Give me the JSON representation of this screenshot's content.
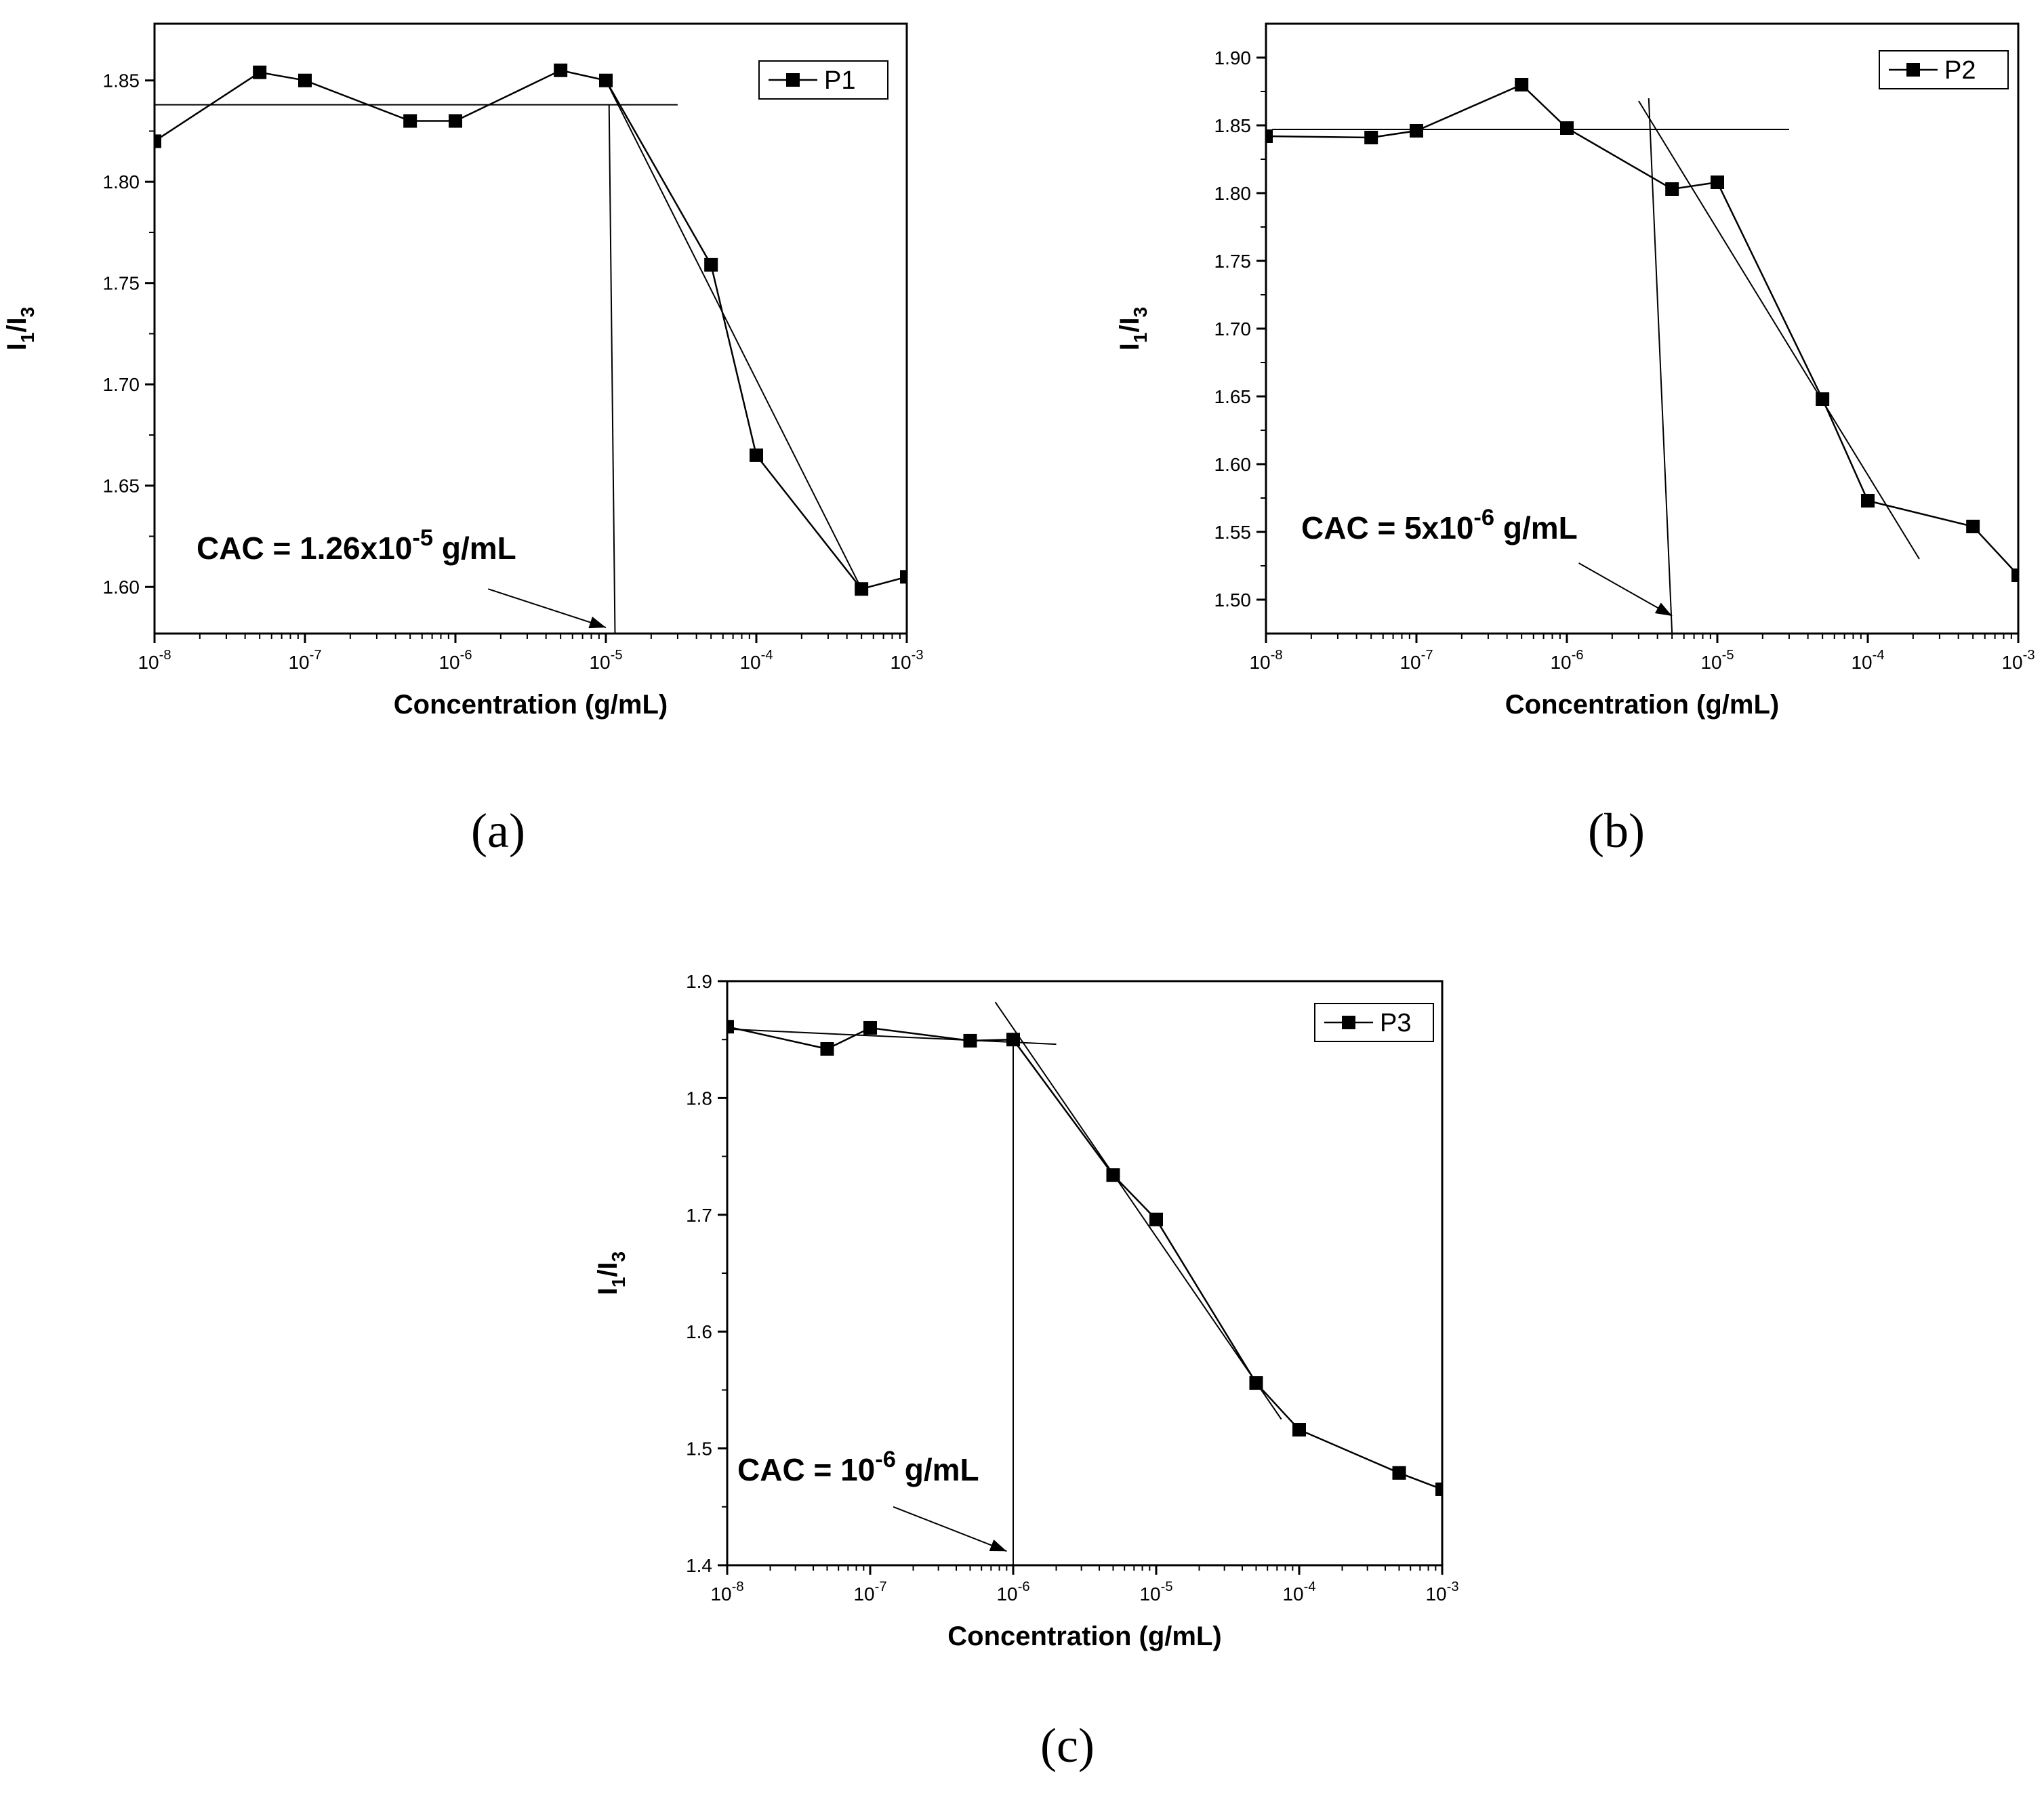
{
  "colors": {
    "ink": "#000000",
    "background": "#ffffff"
  },
  "chart_data": [
    {
      "panel": "a",
      "panel_label": "(a)",
      "type": "line",
      "series": [
        {
          "name": "P1",
          "marker": "filled-square",
          "x": [
            1e-08,
            5e-08,
            1e-07,
            5e-07,
            1e-06,
            5e-06,
            1e-05,
            5e-05,
            0.0001,
            0.0005,
            0.001
          ],
          "y": [
            1.82,
            1.854,
            1.85,
            1.83,
            1.83,
            1.855,
            1.85,
            1.759,
            1.665,
            1.599,
            1.605
          ]
        }
      ],
      "fit_lines": [
        {
          "x": [
            1e-08,
            3e-05
          ],
          "y": [
            1.838,
            1.838
          ]
        },
        {
          "x": [
            1.05e-05,
            1.15e-05
          ],
          "y": [
            1.838,
            1.577
          ]
        },
        {
          "x": [
            1e-05,
            0.0005
          ],
          "y": [
            1.85,
            1.599
          ]
        }
      ],
      "xlabel": "Concentration (g/mL)",
      "ylabel_main": "I",
      "ylabel_sub1": "1",
      "ylabel_sep": "/",
      "ylabel_sub2": "3",
      "xscale": "log",
      "xlim": [
        1e-08,
        0.001
      ],
      "ylim": [
        1.577,
        1.878
      ],
      "x_ticks": [
        {
          "base": "10",
          "exp": "-8"
        },
        {
          "base": "10",
          "exp": "-7"
        },
        {
          "base": "10",
          "exp": "-6"
        },
        {
          "base": "10",
          "exp": "-5"
        },
        {
          "base": "10",
          "exp": "-4"
        },
        {
          "base": "10",
          "exp": "-3"
        }
      ],
      "y_ticks": [
        "1.60",
        "1.65",
        "1.70",
        "1.75",
        "1.80",
        "1.85"
      ],
      "legend_position": "top-right",
      "annotation": {
        "prefix": "CAC = 1.26x10",
        "exp": "-5",
        "suffix": " g/mL",
        "arrow_from": [
          1.65e-06,
          1.599
        ],
        "arrow_to": [
          1e-05,
          1.58
        ]
      }
    },
    {
      "panel": "b",
      "panel_label": "(b)",
      "type": "line",
      "series": [
        {
          "name": "P2",
          "marker": "filled-square",
          "x": [
            1e-08,
            5e-08,
            1e-07,
            5e-07,
            1e-06,
            5e-06,
            1e-05,
            5e-05,
            0.0001,
            0.0005,
            0.001
          ],
          "y": [
            1.842,
            1.841,
            1.846,
            1.88,
            1.848,
            1.803,
            1.808,
            1.648,
            1.573,
            1.554,
            1.518
          ]
        }
      ],
      "fit_lines": [
        {
          "x": [
            1.1e-08,
            3e-05
          ],
          "y": [
            1.847,
            1.847
          ]
        },
        {
          "x": [
            3.5e-06,
            5e-06
          ],
          "y": [
            1.87,
            1.475
          ]
        },
        {
          "x": [
            3e-06,
            0.00022
          ],
          "y": [
            1.868,
            1.53
          ]
        }
      ],
      "xlabel": "Concentration (g/mL)",
      "ylabel_main": "I",
      "ylabel_sub1": "1",
      "ylabel_sep": "/",
      "ylabel_sub2": "3",
      "xscale": "log",
      "xlim": [
        1e-08,
        0.001
      ],
      "ylim": [
        1.475,
        1.925
      ],
      "x_ticks": [
        {
          "base": "10",
          "exp": "-8"
        },
        {
          "base": "10",
          "exp": "-7"
        },
        {
          "base": "10",
          "exp": "-6"
        },
        {
          "base": "10",
          "exp": "-5"
        },
        {
          "base": "10",
          "exp": "-4"
        },
        {
          "base": "10",
          "exp": "-3"
        }
      ],
      "y_ticks": [
        "1.50",
        "1.55",
        "1.60",
        "1.65",
        "1.70",
        "1.75",
        "1.80",
        "1.85",
        "1.90"
      ],
      "legend_position": "top-right",
      "annotation": {
        "prefix": "CAC = 5x10",
        "exp": "-6",
        "suffix": " g/mL",
        "arrow_from": [
          1.2e-06,
          1.527
        ],
        "arrow_to": [
          5e-06,
          1.488
        ]
      }
    },
    {
      "panel": "c",
      "panel_label": "(c)",
      "type": "line",
      "series": [
        {
          "name": "P3",
          "marker": "filled-square",
          "x": [
            1e-08,
            5e-08,
            1e-07,
            5e-07,
            1e-06,
            5e-06,
            1e-05,
            5e-05,
            0.0001,
            0.0005,
            0.001
          ],
          "y": [
            1.861,
            1.842,
            1.86,
            1.849,
            1.85,
            1.734,
            1.696,
            1.556,
            1.516,
            1.479,
            1.465
          ]
        }
      ],
      "fit_lines": [
        {
          "x": [
            1e-08,
            2e-06
          ],
          "y": [
            1.859,
            1.846
          ]
        },
        {
          "x": [
            1e-06,
            1e-06
          ],
          "y": [
            1.85,
            1.4
          ]
        },
        {
          "x": [
            7.5e-07,
            7.5e-05
          ],
          "y": [
            1.882,
            1.525
          ]
        }
      ],
      "xlabel": "Concentration (g/mL)",
      "ylabel_main": "I",
      "ylabel_sub1": "1",
      "ylabel_sep": "/",
      "ylabel_sub2": "3",
      "xscale": "log",
      "xlim": [
        1e-08,
        0.001
      ],
      "ylim": [
        1.4,
        1.9
      ],
      "x_ticks": [
        {
          "base": "10",
          "exp": "-8"
        },
        {
          "base": "10",
          "exp": "-7"
        },
        {
          "base": "10",
          "exp": "-6"
        },
        {
          "base": "10",
          "exp": "-5"
        },
        {
          "base": "10",
          "exp": "-4"
        },
        {
          "base": "10",
          "exp": "-3"
        }
      ],
      "y_ticks": [
        "1.4",
        "1.5",
        "1.6",
        "1.7",
        "1.8",
        "1.9"
      ],
      "legend_position": "top-right",
      "annotation": {
        "prefix": "CAC = 10",
        "exp": "-6",
        "suffix": " g/mL",
        "arrow_from": [
          1.45e-07,
          1.45
        ],
        "arrow_to": [
          9e-07,
          1.412
        ]
      }
    }
  ]
}
